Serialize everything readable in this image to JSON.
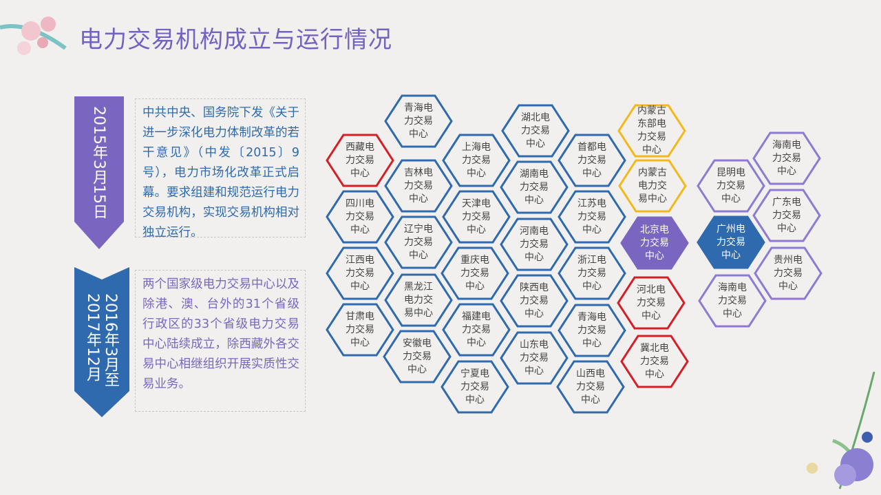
{
  "title": "电力交易机构成立与运行情况",
  "colors": {
    "purple": "#7262c2",
    "blue": "#2e6aad",
    "red": "#d41f26",
    "gold": "#f2b81c",
    "lavender": "#8e7ad0"
  },
  "timeline": [
    {
      "date": "2015年3月15日",
      "color": "#7a66c0",
      "text": "中共中央、国务院下发《关于进一步深化电力体制改革的若干意见》（中发〔2015〕9号），电力市场化改革正式启幕。要求组建和规范运行电力交易机构，实现交易机构相对独立运行。",
      "text_color": "#2e6aad"
    },
    {
      "date": "2016年3月至\n2017年12月",
      "color": "#2e6aad",
      "text": "两个国家级电力交易中心以及除港、澳、台外的31个省级行政区的33个省级电力交易中心陆续成立，除西藏外各交易中心相继组织开展实质性交易业务。",
      "text_color": "#7a66c0"
    }
  ],
  "hexes": [
    {
      "label": "西藏电\n力交易\n中心",
      "style": "red"
    },
    {
      "label": "四川电\n力交易\n中心",
      "style": "blue"
    },
    {
      "label": "江西电\n力交易\n中心",
      "style": "blue"
    },
    {
      "label": "甘肃电\n力交易\n中心",
      "style": "blue"
    },
    {
      "label": "青海电\n力交易\n中心",
      "style": "blue"
    },
    {
      "label": "吉林电\n力交易\n中心",
      "style": "blue"
    },
    {
      "label": "辽宁电\n力交易\n中心",
      "style": "blue"
    },
    {
      "label": "黑龙江\n电力交\n易中心",
      "style": "blue"
    },
    {
      "label": "安徽电\n力交易\n中心",
      "style": "blue"
    },
    {
      "label": "上海电\n力交易\n中心",
      "style": "blue"
    },
    {
      "label": "天津电\n力交易\n中心",
      "style": "blue"
    },
    {
      "label": "重庆电\n力交易\n中心",
      "style": "blue"
    },
    {
      "label": "福建电\n力交易\n中心",
      "style": "blue"
    },
    {
      "label": "宁夏电\n力交易\n中心",
      "style": "blue"
    },
    {
      "label": "湖北电\n力交易\n中心",
      "style": "blue"
    },
    {
      "label": "湖南电\n力交易\n中心",
      "style": "blue"
    },
    {
      "label": "河南电\n力交易\n中心",
      "style": "blue"
    },
    {
      "label": "陕西电\n力交易\n中心",
      "style": "blue"
    },
    {
      "label": "山东电\n力交易\n中心",
      "style": "blue"
    },
    {
      "label": "首都电\n力交易\n中心",
      "style": "blue"
    },
    {
      "label": "江苏电\n力交易\n中心",
      "style": "blue"
    },
    {
      "label": "浙江电\n力交易\n中心",
      "style": "blue"
    },
    {
      "label": "青海电\n力交易\n中心",
      "style": "blue"
    },
    {
      "label": "山西电\n力交易\n中心",
      "style": "blue"
    },
    {
      "label": "内蒙古\n东部电\n力交易\n中心",
      "style": "gold"
    },
    {
      "label": "内蒙古\n电力交\n易中心",
      "style": "gold"
    },
    {
      "label": "北京电\n力交易\n中心",
      "style": "purple-filled"
    },
    {
      "label": "河北电\n力交易\n中心",
      "style": "red"
    },
    {
      "label": "冀北电\n力交易\n中心",
      "style": "red"
    },
    {
      "label": "昆明电\n力交易\n中心",
      "style": "lavender"
    },
    {
      "label": "广州电\n力交易\n中心",
      "style": "blue-filled"
    },
    {
      "label": "海南电\n力交易\n中心",
      "style": "lavender"
    },
    {
      "label": "海南电\n力交易\n中心",
      "style": "lavender"
    },
    {
      "label": "广东电\n力交易\n中心",
      "style": "lavender"
    },
    {
      "label": "贵州电\n力交易\n中心",
      "style": "lavender"
    }
  ]
}
